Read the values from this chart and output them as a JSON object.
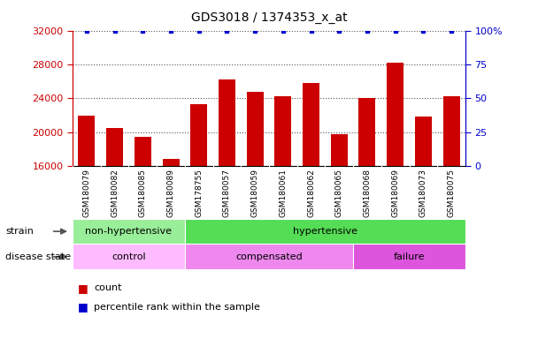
{
  "title": "GDS3018 / 1374353_x_at",
  "samples": [
    "GSM180079",
    "GSM180082",
    "GSM180085",
    "GSM180089",
    "GSM178755",
    "GSM180057",
    "GSM180059",
    "GSM180061",
    "GSM180062",
    "GSM180065",
    "GSM180068",
    "GSM180069",
    "GSM180073",
    "GSM180075"
  ],
  "counts": [
    22000,
    20500,
    19500,
    16800,
    23300,
    26200,
    24800,
    24200,
    25800,
    19800,
    24000,
    28200,
    21800,
    24200
  ],
  "percentile_ranks": [
    100,
    100,
    100,
    100,
    100,
    100,
    100,
    100,
    100,
    100,
    100,
    100,
    100,
    100
  ],
  "ylim_left": [
    16000,
    32000
  ],
  "ylim_right": [
    0,
    100
  ],
  "yticks_left": [
    16000,
    20000,
    24000,
    28000,
    32000
  ],
  "yticks_right": [
    0,
    25,
    50,
    75,
    100
  ],
  "bar_color": "#cc0000",
  "dot_color": "#0000cc",
  "background_color": "#ffffff",
  "strain_groups": [
    {
      "label": "non-hypertensive",
      "start": 0,
      "end": 4,
      "color": "#99ee99"
    },
    {
      "label": "hypertensive",
      "start": 4,
      "end": 14,
      "color": "#55dd55"
    }
  ],
  "disease_groups": [
    {
      "label": "control",
      "start": 0,
      "end": 4,
      "color": "#ffbbff"
    },
    {
      "label": "compensated",
      "start": 4,
      "end": 10,
      "color": "#ee88ee"
    },
    {
      "label": "failure",
      "start": 10,
      "end": 14,
      "color": "#dd55dd"
    }
  ],
  "tick_label_color_left": "#cc0000",
  "tick_label_color_right": "#0000cc",
  "xtick_bg_color": "#cccccc",
  "plot_bg_color": "#ffffff"
}
